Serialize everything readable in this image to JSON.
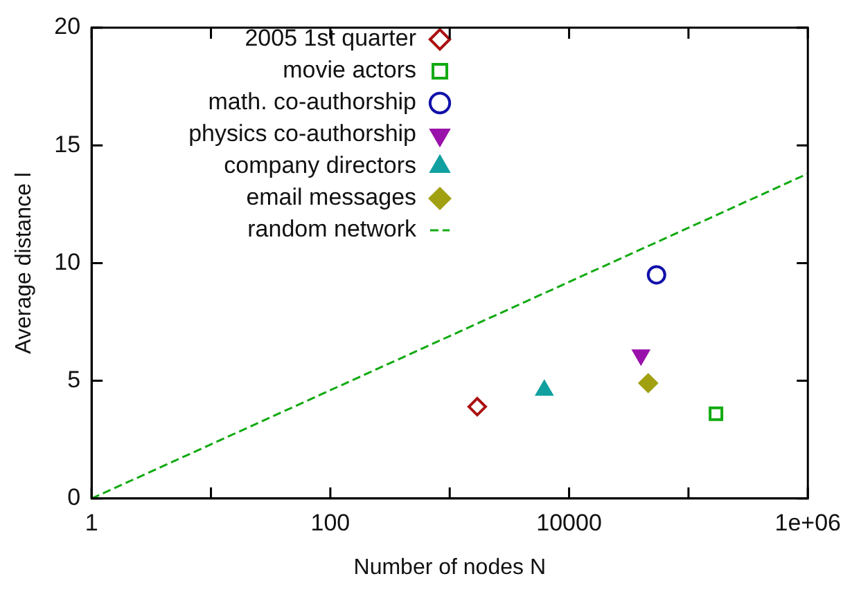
{
  "chart_data": {
    "type": "scatter",
    "xlabel": "Number of nodes N",
    "ylabel": "Average distance l",
    "log": "x",
    "xlim": [
      1,
      1000000
    ],
    "xticks": [
      1,
      {
        "value": 10,
        "label": null
      },
      100,
      {
        "value": 1000,
        "label": null
      },
      10000,
      {
        "value": 100000,
        "label": null
      },
      {
        "value": 1000000,
        "label": "1e+06"
      }
    ],
    "ylim": [
      0,
      20
    ],
    "yticks": [
      0,
      5,
      10,
      15,
      20
    ],
    "grid": false,
    "legend": "top left",
    "series": [
      {
        "name": "2005 1st quarter",
        "color": "#aa1111",
        "marker": "diamond-open",
        "x": [
          1700
        ],
        "values": [
          3.9
        ]
      },
      {
        "name": "movie actors",
        "color": "#11aa11",
        "marker": "square-open",
        "x": [
          170000
        ],
        "values": [
          3.6
        ]
      },
      {
        "name": "math. co-authorship",
        "color": "#1111aa",
        "marker": "circle-open",
        "x": [
          54000
        ],
        "values": [
          9.5
        ]
      },
      {
        "name": "physics co-authorship",
        "color": "#9911aa",
        "marker": "triangle-down",
        "x": [
          40000
        ],
        "values": [
          6.1
        ]
      },
      {
        "name": "company directors",
        "color": "#11a0a0",
        "marker": "triangle",
        "x": [
          6200
        ],
        "values": [
          4.6
        ]
      },
      {
        "name": "email messages",
        "color": "#a0a011",
        "marker": "diamond",
        "x": [
          46000
        ],
        "values": [
          4.9
        ]
      },
      {
        "name": "random network",
        "type": "line",
        "color": "#11aa11",
        "line_style": "dashed",
        "marker": "none",
        "x": [
          1,
          1000000
        ],
        "values": [
          0,
          13.8
        ]
      }
    ]
  }
}
